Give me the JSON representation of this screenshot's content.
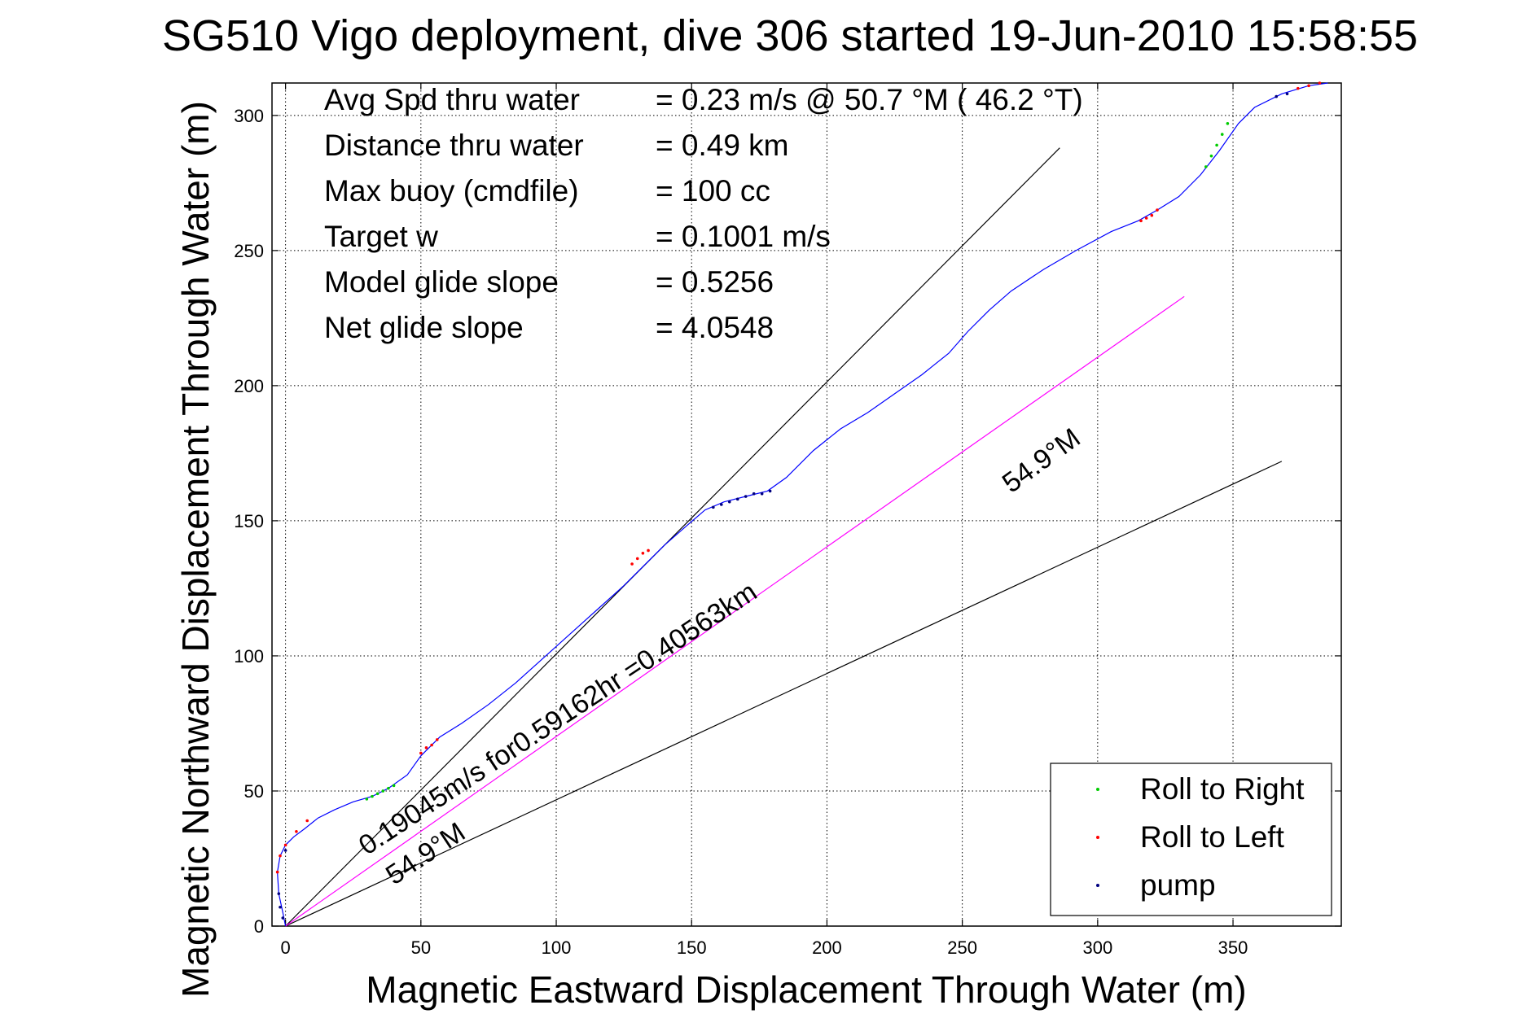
{
  "chart_data": {
    "type": "line",
    "title": "SG510 Vigo deployment, dive 306 started 19-Jun-2010 15:58:55",
    "xlabel": "Magnetic Eastward Displacement Through Water (m)",
    "ylabel": "Magnetic Northward Displacement Through Water (m)",
    "xlim": [
      -5,
      390
    ],
    "ylim": [
      0,
      312
    ],
    "xticks": [
      0,
      50,
      100,
      150,
      200,
      250,
      300,
      350
    ],
    "yticks": [
      0,
      50,
      100,
      150,
      200,
      250,
      300
    ],
    "grid": true,
    "stats": [
      {
        "label": "Avg Spd thru water",
        "value": "=  0.23 m/s @  50.7 °M ( 46.2 °T)"
      },
      {
        "label": "Distance thru water",
        "value": "=  0.49 km"
      },
      {
        "label": "Max buoy (cmdfile)",
        "value": "= 100 cc"
      },
      {
        "label": "Target w",
        "value": "= 0.1001 m/s"
      },
      {
        "label": "Model glide slope",
        "value": "= 0.5256"
      },
      {
        "label": "Net glide slope",
        "value": "= 4.0548"
      }
    ],
    "track": {
      "color": "#0000ff",
      "x": [
        0,
        -1,
        -2.5,
        -3,
        -2,
        0,
        3,
        7,
        12,
        18,
        25,
        32,
        38,
        45,
        50,
        57,
        65,
        75,
        85,
        95,
        105,
        115,
        125,
        133,
        140,
        148,
        155,
        162,
        170,
        178,
        185,
        195,
        205,
        215,
        225,
        235,
        245,
        252,
        260,
        268,
        280,
        292,
        305,
        315,
        322,
        330,
        338,
        345,
        352,
        358,
        368,
        378,
        385
      ],
      "y": [
        0,
        5,
        12,
        20,
        26,
        30,
        33,
        36,
        40,
        43,
        46,
        48,
        51,
        56,
        63,
        70,
        75,
        82,
        90,
        99,
        108,
        117,
        126,
        134,
        141,
        148,
        154,
        157,
        159,
        161,
        166,
        176,
        184,
        190,
        197,
        204,
        212,
        220,
        228,
        235,
        243,
        250,
        257,
        261,
        265,
        270,
        278,
        287,
        297,
        303,
        308,
        311,
        312
      ]
    },
    "heading_lines": [
      {
        "x": [
          0,
          286
        ],
        "y": [
          0,
          288
        ],
        "color": "#000000"
      },
      {
        "x": [
          0,
          368
        ],
        "y": [
          0,
          172
        ],
        "color": "#000000"
      }
    ],
    "current_line": {
      "x": [
        0,
        332
      ],
      "y": [
        0,
        233
      ],
      "color": "#ff00ff"
    },
    "markers": {
      "roll_right": {
        "color": "#00cc00",
        "x": [
          30,
          32,
          34,
          36,
          38,
          40,
          340,
          342,
          344,
          346,
          348
        ],
        "y": [
          47,
          48,
          49,
          50,
          51,
          52,
          281,
          285,
          289,
          293,
          297
        ]
      },
      "roll_left": {
        "color": "#ff0000",
        "x": [
          -3,
          -2,
          0,
          4,
          8,
          50,
          52,
          54,
          56,
          128,
          130,
          132,
          134,
          316,
          318,
          320,
          322,
          374,
          378,
          382
        ],
        "y": [
          20,
          26,
          30,
          35,
          39,
          64,
          66,
          67,
          69,
          134,
          136,
          138,
          139,
          261,
          262,
          263,
          265,
          310,
          311,
          312
        ]
      },
      "pump": {
        "color": "#000080",
        "x": [
          -1,
          -2,
          -2.5,
          0,
          158,
          161,
          164,
          167,
          170,
          173,
          176,
          179,
          366,
          370
        ],
        "y": [
          3,
          7,
          12,
          28,
          155,
          156,
          157,
          158,
          159,
          160,
          160,
          161,
          307,
          308
        ]
      }
    },
    "annotations": [
      {
        "text": "54.9°M",
        "x": 268,
        "y": 160,
        "angle_deg": -36
      },
      {
        "text": "0.19045m/s for0.59162hr =0.40563km",
        "x": 30,
        "y": 26,
        "angle_deg": -33.5
      },
      {
        "text": "54.9°M",
        "x": 40,
        "y": 15,
        "angle_deg": -33.5
      }
    ],
    "legend": {
      "position": "bottom-right",
      "entries": [
        {
          "label": "Roll to Right",
          "color": "#00cc00"
        },
        {
          "label": "Roll to Left",
          "color": "#ff0000"
        },
        {
          "label": "pump",
          "color": "#000080"
        }
      ]
    }
  }
}
